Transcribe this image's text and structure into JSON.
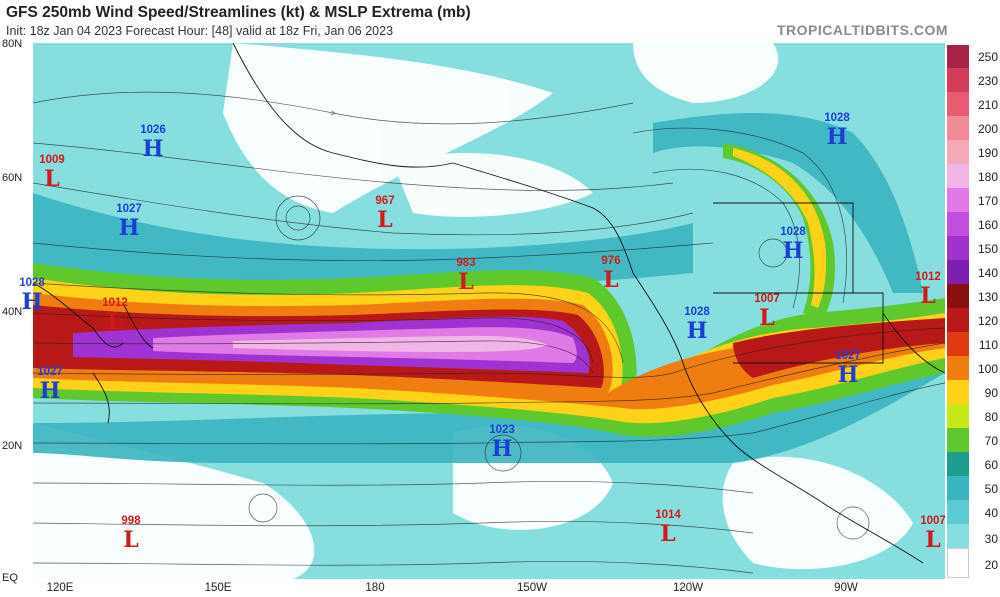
{
  "header": {
    "title": "GFS 250mb Wind Speed/Streamlines (kt) & MSLP Extrema (mb)",
    "subtitle": "Init: 18z Jan 04 2023   Forecast Hour: [48]   valid at 18z Fri, Jan 06 2023",
    "brand": "TROPICALTIDBITS.COM"
  },
  "axes": {
    "lat_labels": [
      "80N",
      "60N",
      "40N",
      "20N",
      "EQ"
    ],
    "lon_labels": [
      "120E",
      "150E",
      "180",
      "150W",
      "120W",
      "90W"
    ]
  },
  "colorbar": {
    "labels": [
      "250",
      "230",
      "210",
      "200",
      "190",
      "180",
      "170",
      "160",
      "150",
      "140",
      "130",
      "120",
      "110",
      "100",
      "90",
      "80",
      "70",
      "60",
      "50",
      "40",
      "30",
      "20"
    ],
    "colors": [
      "#a8224a",
      "#d43c58",
      "#e85c70",
      "#f08a96",
      "#f5a8b6",
      "#f2b6e6",
      "#e07ae6",
      "#c44ee0",
      "#a032d2",
      "#7a1fb0",
      "#8a1010",
      "#b81818",
      "#e03a10",
      "#f07d10",
      "#ffd21a",
      "#c8e81c",
      "#5ec82c",
      "#1e9c8c",
      "#3ab4c0",
      "#5ccad2",
      "#86dede",
      "#ffffff"
    ]
  },
  "pressure_centers": [
    {
      "type": "H",
      "value": "1026"
    },
    {
      "type": "L",
      "value": "1009"
    },
    {
      "type": "H",
      "value": "1027"
    },
    {
      "type": "H",
      "value": "1028"
    },
    {
      "type": "L",
      "value": "1012"
    },
    {
      "type": "H",
      "value": "1027"
    },
    {
      "type": "L",
      "value": "967"
    },
    {
      "type": "L",
      "value": "983"
    },
    {
      "type": "L",
      "value": "976"
    },
    {
      "type": "H",
      "value": "1028"
    },
    {
      "type": "L",
      "value": "1007"
    },
    {
      "type": "H",
      "value": "1028"
    },
    {
      "type": "H",
      "value": "1028"
    },
    {
      "type": "L",
      "value": "1012"
    },
    {
      "type": "H",
      "value": "1027"
    },
    {
      "type": "H",
      "value": "1023"
    },
    {
      "type": "L",
      "value": "998"
    },
    {
      "type": "L",
      "value": "1014"
    },
    {
      "type": "L",
      "value": "1007"
    }
  ]
}
